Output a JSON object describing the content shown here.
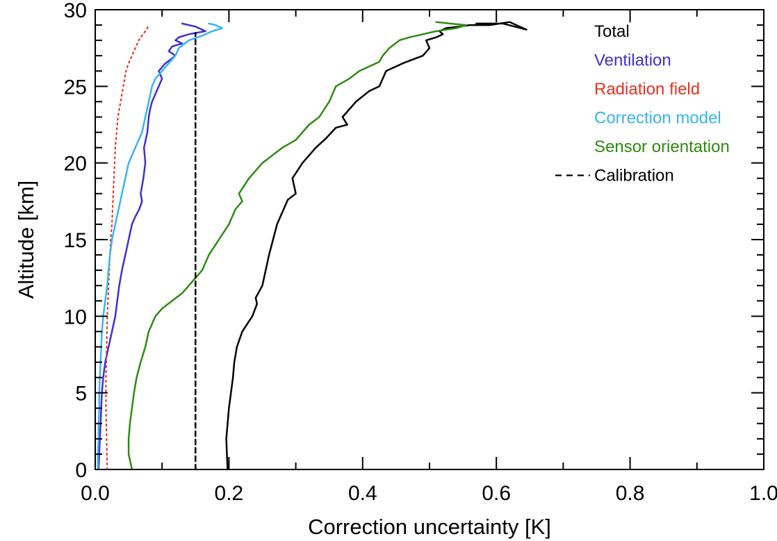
{
  "chart_data": {
    "type": "line",
    "title": "",
    "xlabel": "Correction uncertainty [K]",
    "ylabel": "Altitude [km]",
    "xlim": [
      0.0,
      1.0
    ],
    "ylim": [
      0,
      30
    ],
    "xticks": [
      "0.0",
      "0.2",
      "0.4",
      "0.6",
      "0.8",
      "1.0"
    ],
    "yticks": [
      "0",
      "5",
      "10",
      "15",
      "20",
      "25",
      "30"
    ],
    "grid": false,
    "legend_position": "top-right",
    "series": [
      {
        "name": "Total",
        "color": "#000000",
        "style": "solid",
        "x": [
          0.198,
          0.197,
          0.196,
          0.198,
          0.2,
          0.203,
          0.206,
          0.208,
          0.212,
          0.22,
          0.235,
          0.242,
          0.24,
          0.25,
          0.255,
          0.26,
          0.266,
          0.272,
          0.282,
          0.288,
          0.3,
          0.295,
          0.31,
          0.33,
          0.345,
          0.36,
          0.377,
          0.37,
          0.39,
          0.41,
          0.425,
          0.43,
          0.435,
          0.46,
          0.49,
          0.5,
          0.495,
          0.51,
          0.52,
          0.515,
          0.525,
          0.545,
          0.56,
          0.59,
          0.62,
          0.645,
          0.61,
          0.57
        ],
        "y": [
          0,
          1,
          2,
          3,
          4,
          5,
          6,
          7,
          8,
          9,
          10,
          10.8,
          11.2,
          12,
          13,
          14,
          15,
          16,
          17,
          17.6,
          18,
          19,
          20,
          21,
          21.6,
          22.3,
          22.5,
          23,
          24,
          24.7,
          25,
          25.5,
          26,
          26.5,
          27,
          27.5,
          28,
          28.2,
          28.4,
          28.6,
          28.8,
          28.9,
          29,
          29,
          29.2,
          28.7,
          29.1,
          29.1
        ]
      },
      {
        "name": "Ventilation",
        "color": "#3f2fd1",
        "style": "solid",
        "x": [
          0.005,
          0.006,
          0.007,
          0.008,
          0.009,
          0.01,
          0.012,
          0.015,
          0.02,
          0.025,
          0.03,
          0.033,
          0.036,
          0.04,
          0.045,
          0.05,
          0.055,
          0.06,
          0.066,
          0.07,
          0.068,
          0.072,
          0.075,
          0.073,
          0.078,
          0.08,
          0.082,
          0.085,
          0.09,
          0.095,
          0.1,
          0.095,
          0.105,
          0.12,
          0.11,
          0.115,
          0.13,
          0.12,
          0.125,
          0.14,
          0.165,
          0.15,
          0.13
        ],
        "y": [
          0,
          1,
          2,
          3,
          4,
          5,
          6,
          7,
          8,
          9,
          10,
          11,
          12,
          13,
          14,
          15,
          16,
          16.5,
          17,
          17.5,
          18,
          19,
          20,
          21,
          22,
          23,
          23.5,
          24,
          24.5,
          25,
          25.5,
          26,
          26.5,
          27,
          27.3,
          27.6,
          27.8,
          28,
          28.2,
          28.4,
          28.6,
          28.9,
          29.1
        ]
      },
      {
        "name": "Radiation field",
        "color": "#e8321e",
        "style": "dotted",
        "x": [
          0.018,
          0.017,
          0.016,
          0.016,
          0.017,
          0.018,
          0.019,
          0.02,
          0.021,
          0.022,
          0.023,
          0.025,
          0.026,
          0.027,
          0.028,
          0.029,
          0.03,
          0.032,
          0.034,
          0.038,
          0.042,
          0.046,
          0.05,
          0.055,
          0.06,
          0.065,
          0.07,
          0.075,
          0.078,
          0.08
        ],
        "y": [
          0,
          2,
          4,
          6,
          8,
          10,
          11,
          12,
          13,
          14,
          15,
          16,
          17,
          18,
          19,
          20,
          21,
          22,
          23,
          24,
          25,
          26,
          26.5,
          27,
          27.5,
          28,
          28.3,
          28.6,
          28.8,
          29
        ]
      },
      {
        "name": "Correction model",
        "color": "#38b4f0",
        "style": "solid",
        "x": [
          0.004,
          0.004,
          0.005,
          0.005,
          0.006,
          0.006,
          0.007,
          0.008,
          0.009,
          0.01,
          0.012,
          0.015,
          0.018,
          0.02,
          0.022,
          0.025,
          0.03,
          0.035,
          0.04,
          0.045,
          0.05,
          0.06,
          0.07,
          0.075,
          0.08,
          0.085,
          0.09,
          0.1,
          0.11,
          0.12,
          0.125,
          0.14,
          0.16,
          0.175,
          0.19,
          0.18,
          0.17
        ],
        "y": [
          0,
          1,
          2,
          3,
          4,
          5,
          6,
          7,
          8,
          9,
          10,
          11,
          12,
          13,
          14,
          15,
          16,
          17,
          18,
          19,
          20,
          21,
          22,
          23,
          24,
          25,
          25.5,
          26,
          26.5,
          27,
          27.5,
          28,
          28.3,
          28.6,
          28.8,
          29,
          29.1
        ]
      },
      {
        "name": "Sensor orientation",
        "color": "#2f8a12",
        "style": "solid",
        "x": [
          0.055,
          0.05,
          0.05,
          0.052,
          0.055,
          0.058,
          0.062,
          0.068,
          0.075,
          0.08,
          0.09,
          0.1,
          0.115,
          0.13,
          0.14,
          0.15,
          0.16,
          0.17,
          0.185,
          0.2,
          0.21,
          0.22,
          0.215,
          0.23,
          0.25,
          0.28,
          0.3,
          0.31,
          0.32,
          0.335,
          0.35,
          0.36,
          0.38,
          0.395,
          0.41,
          0.425,
          0.43,
          0.44,
          0.455,
          0.47,
          0.49,
          0.51,
          0.54,
          0.555,
          0.53,
          0.51
        ],
        "y": [
          0,
          1,
          2,
          3,
          4,
          5,
          6,
          7,
          8,
          9,
          10,
          10.5,
          11,
          11.5,
          12,
          12.5,
          13,
          14,
          15,
          16,
          17,
          17.5,
          18,
          19,
          20,
          21,
          21.5,
          22,
          22.5,
          23,
          24,
          25,
          25.5,
          26,
          26.3,
          26.6,
          27,
          27.5,
          28,
          28.2,
          28.4,
          28.6,
          28.8,
          29,
          29.1,
          29.2
        ]
      },
      {
        "name": "Calibration",
        "color": "#000000",
        "style": "dashed",
        "x": [
          0.15,
          0.15
        ],
        "y": [
          0,
          28.5
        ]
      }
    ]
  }
}
